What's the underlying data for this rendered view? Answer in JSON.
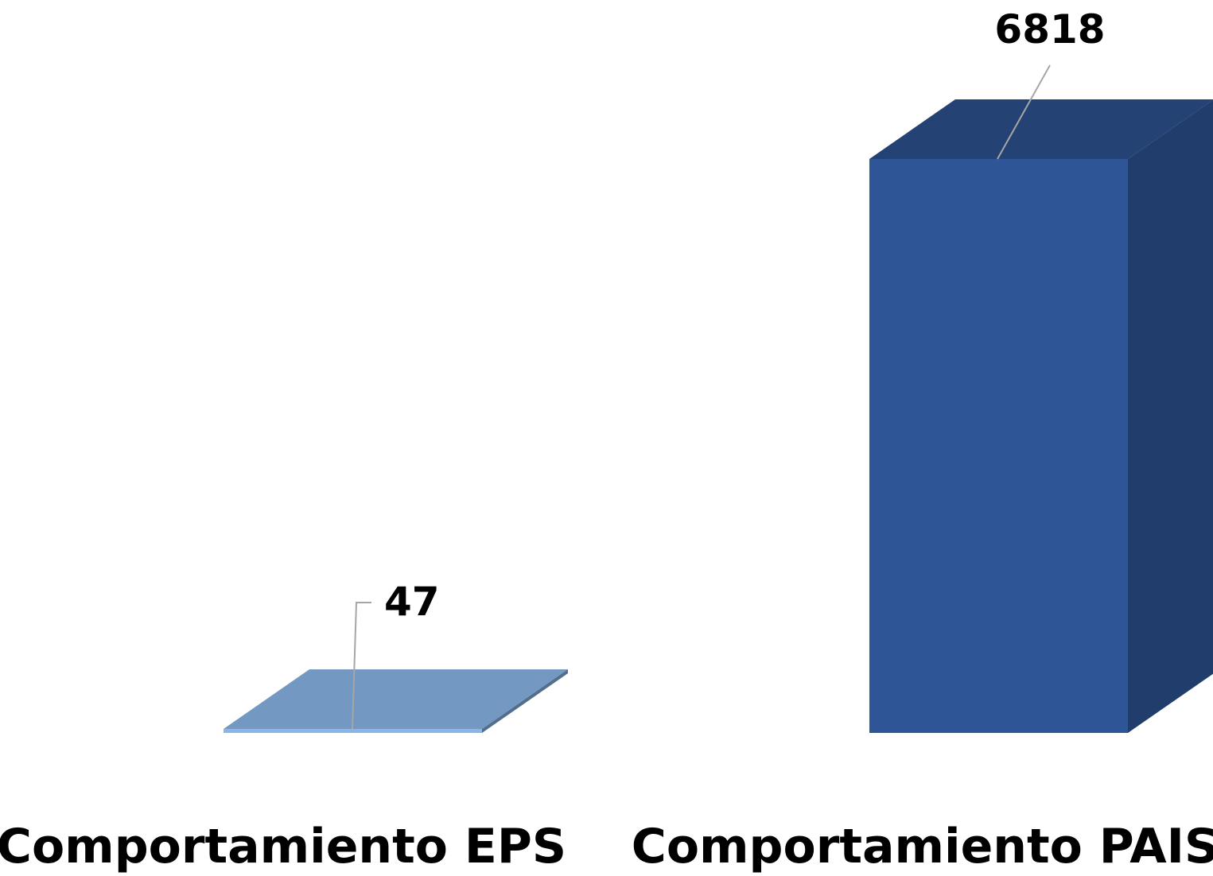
{
  "chart_data": {
    "type": "bar",
    "style": "3d-column",
    "categories": [
      "Comportamiento EPS",
      "Comportamiento PAIS"
    ],
    "values": [
      47,
      6818
    ],
    "data_labels": [
      "47",
      "6818"
    ],
    "colors": [
      "#7399c2",
      "#2e5595"
    ],
    "grid": false,
    "legend": "none"
  }
}
